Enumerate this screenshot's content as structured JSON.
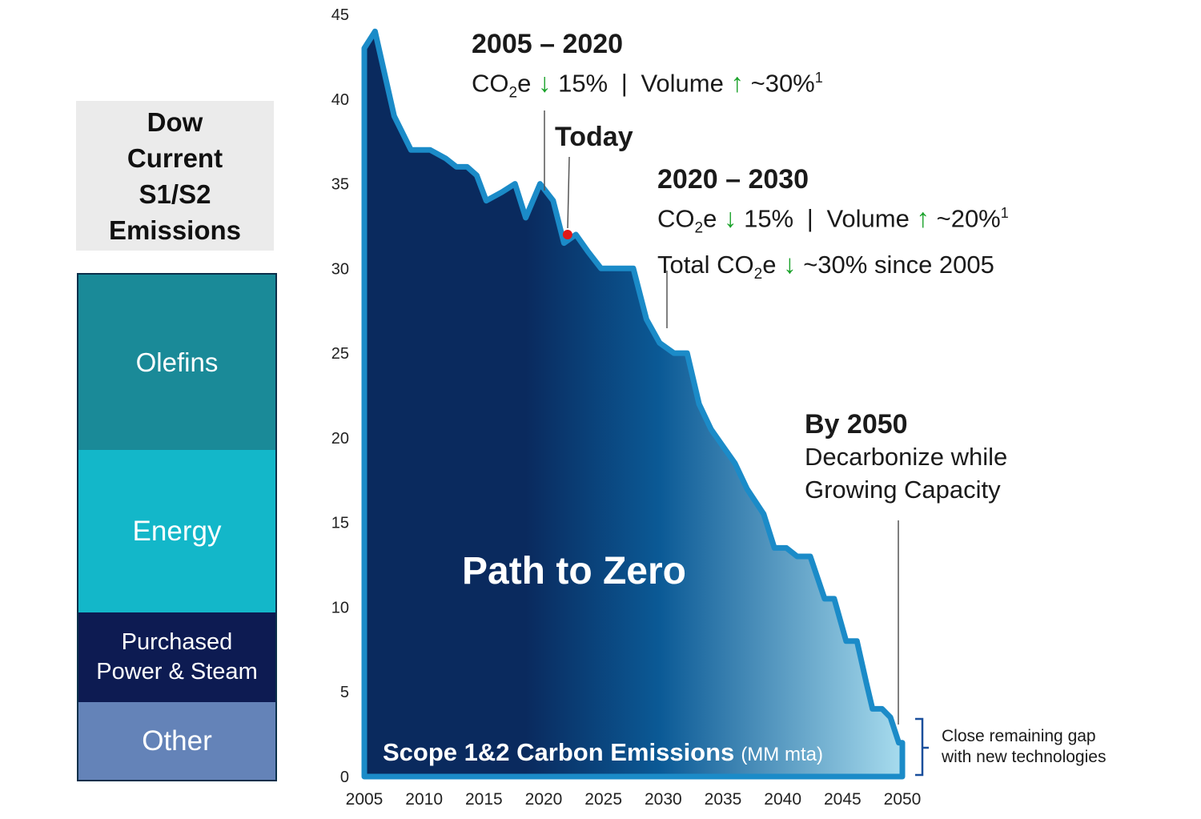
{
  "legend": {
    "title": "Dow\nCurrent\nS1/S2\nEmissions",
    "segments": [
      {
        "label": "Olefins",
        "color": "#1a8a98"
      },
      {
        "label": "Energy",
        "color": "#13b7c9"
      },
      {
        "label": "Purchased\nPower & Steam",
        "color": "#0d1b52"
      },
      {
        "label": "Other",
        "color": "#6483b8"
      }
    ]
  },
  "annotations": {
    "period1": {
      "heading": "2005 – 2020",
      "co2": "CO",
      "co2_sub": "2",
      "co2_e": "e",
      "co2_change": "15%",
      "separator": "|",
      "volume": "Volume",
      "volume_change": "~30%",
      "footnote": "1"
    },
    "today": {
      "label": "Today"
    },
    "period2": {
      "heading": "2020 – 2030",
      "co2": "CO",
      "co2_sub": "2",
      "co2_e": "e",
      "co2_change": "15%",
      "separator": "|",
      "volume": "Volume",
      "volume_change": "~20%",
      "footnote": "1",
      "total_prefix": "Total CO",
      "total_sub": "2",
      "total_e": "e",
      "total_change": "~30% since 2005"
    },
    "goal": {
      "heading": "By 2050",
      "line1": "Decarbonize while",
      "line2": "Growing Capacity"
    },
    "gap": {
      "line1": "Close remaining gap",
      "line2": "with new technologies"
    },
    "arrows": {
      "down": "↓",
      "up": "↑"
    }
  },
  "colors": {
    "area_dark": "#0a2a5e",
    "area_mid": "#0b5a96",
    "area_light": "#a8dcee",
    "outline": "#1b8bc8",
    "arrow": "#1aa22a",
    "today_marker": "#e01818",
    "axis_text": "#222222"
  },
  "chart_data": {
    "type": "area",
    "title": "Path to Zero",
    "inner_label": "Scope 1&2 Carbon Emissions",
    "inner_unit": "(MM mta)",
    "xlabel": "",
    "ylabel": "",
    "xlim": [
      2005,
      2050
    ],
    "ylim": [
      0,
      45
    ],
    "x_ticks": [
      "2005",
      "2010",
      "2015",
      "2020",
      "2025",
      "2030",
      "2035",
      "2040",
      "2045",
      "2050"
    ],
    "y_ticks": [
      "0",
      "5",
      "10",
      "15",
      "20",
      "25",
      "30",
      "35",
      "40",
      "45"
    ],
    "today_year": 2022,
    "today_value": 32,
    "series": [
      {
        "name": "Scope 1&2 Carbon Emissions",
        "x": [
          2005,
          2005.9,
          2007.5,
          2008.9,
          2010.5,
          2011.8,
          2012.7,
          2013.6,
          2014.4,
          2015.2,
          2016.5,
          2017.6,
          2018.5,
          2019.7,
          2020.8,
          2021.7,
          2022.7,
          2023.7,
          2024.8,
          2026,
          2027.5,
          2028.6,
          2029.7,
          2030.9,
          2032,
          2033,
          2034,
          2035,
          2036,
          2037,
          2038.4,
          2039.3,
          2040.3,
          2041.2,
          2042.3,
          2043.5,
          2044.3,
          2045.3,
          2046.2,
          2047,
          2047.5,
          2048.3,
          2049,
          2049.7,
          2050
        ],
        "values": [
          43,
          44,
          39,
          37,
          37,
          36.5,
          36,
          36,
          35.5,
          34,
          34.5,
          35,
          33,
          35,
          34,
          31.5,
          32,
          31,
          30,
          30,
          30,
          27,
          25.6,
          25,
          25,
          22,
          20.5,
          19.5,
          18.5,
          17,
          15.5,
          13.5,
          13.5,
          13,
          13,
          10.5,
          10.5,
          8,
          8,
          5.5,
          4,
          4,
          3.5,
          2,
          2
        ]
      }
    ]
  }
}
